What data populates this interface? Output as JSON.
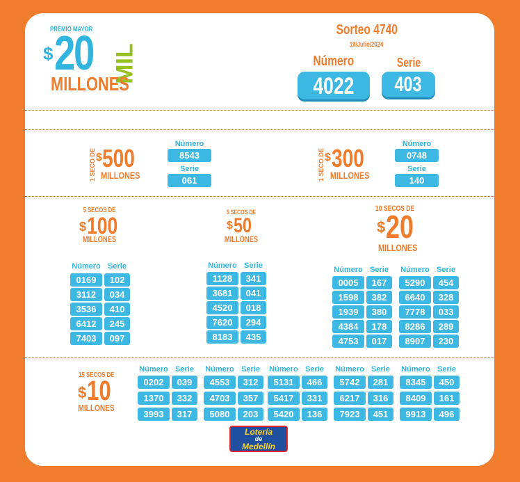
{
  "header": {
    "premio_mayor": "PREMIO MAYOR",
    "amount_symbol": "$",
    "amount": "20",
    "amount_mil": "MIL",
    "amount_unit": "MILLONES",
    "sorteo": "Sorteo 4740",
    "date": "19/Julio/2024",
    "numero_label": "Número",
    "serie_label": "Serie",
    "numero": "4022",
    "serie": "403"
  },
  "seco_500": {
    "prefix": "1 SECO DE",
    "symbol": "$",
    "amount": "500",
    "unit": "MILLONES",
    "numero_label": "Número",
    "numero": "8543",
    "serie_label": "Serie",
    "serie": "061"
  },
  "seco_300": {
    "prefix": "1 SECO DE",
    "symbol": "$",
    "amount": "300",
    "unit": "MILLONES",
    "numero_label": "Número",
    "numero": "0748",
    "serie_label": "Serie",
    "serie": "140"
  },
  "secos_100": {
    "prefix": "5 SECOS DE",
    "symbol": "$",
    "amount": "100",
    "unit": "MILLONES",
    "numero_label": "Número",
    "serie_label": "Serie",
    "rows": [
      [
        "0169",
        "102"
      ],
      [
        "3112",
        "034"
      ],
      [
        "3536",
        "410"
      ],
      [
        "6412",
        "245"
      ],
      [
        "7403",
        "097"
      ]
    ]
  },
  "secos_50": {
    "prefix": "5 SECOS DE",
    "symbol": "$",
    "amount": "50",
    "unit": "MILLONES",
    "numero_label": "Número",
    "serie_label": "Serie",
    "rows": [
      [
        "1128",
        "341"
      ],
      [
        "3681",
        "041"
      ],
      [
        "4520",
        "018"
      ],
      [
        "7620",
        "294"
      ],
      [
        "8183",
        "435"
      ]
    ]
  },
  "secos_20": {
    "prefix": "10 SECOS DE",
    "symbol": "$",
    "amount": "20",
    "unit": "MILLONES",
    "numero_label": "Número",
    "serie_label": "Serie",
    "columns": [
      [
        [
          "0005",
          "167"
        ],
        [
          "1598",
          "382"
        ],
        [
          "1939",
          "380"
        ],
        [
          "4384",
          "178"
        ],
        [
          "4753",
          "017"
        ]
      ],
      [
        [
          "5290",
          "454"
        ],
        [
          "6640",
          "328"
        ],
        [
          "7778",
          "033"
        ],
        [
          "8286",
          "289"
        ],
        [
          "8907",
          "230"
        ]
      ]
    ]
  },
  "secos_10": {
    "prefix": "15 SECOS DE",
    "symbol": "$",
    "amount": "10",
    "unit": "MILLONES",
    "numero_label": "Número",
    "serie_label": "Serie",
    "columns": [
      [
        [
          "0202",
          "039"
        ],
        [
          "1370",
          "332"
        ],
        [
          "3993",
          "317"
        ]
      ],
      [
        [
          "4553",
          "312"
        ],
        [
          "4703",
          "357"
        ],
        [
          "5080",
          "203"
        ]
      ],
      [
        [
          "5131",
          "466"
        ],
        [
          "5417",
          "331"
        ],
        [
          "5420",
          "136"
        ]
      ],
      [
        [
          "5742",
          "281"
        ],
        [
          "6217",
          "316"
        ],
        [
          "7923",
          "451"
        ]
      ],
      [
        [
          "8345",
          "450"
        ],
        [
          "8409",
          "161"
        ],
        [
          "9913",
          "496"
        ]
      ]
    ]
  },
  "logo": {
    "line1": "Lotería",
    "line2": "de",
    "line3": "Medellín"
  },
  "colors": {
    "orange": "#EF7C2C",
    "blue": "#3DB8E3",
    "green": "#95C11F",
    "background": "#F07C2E"
  }
}
